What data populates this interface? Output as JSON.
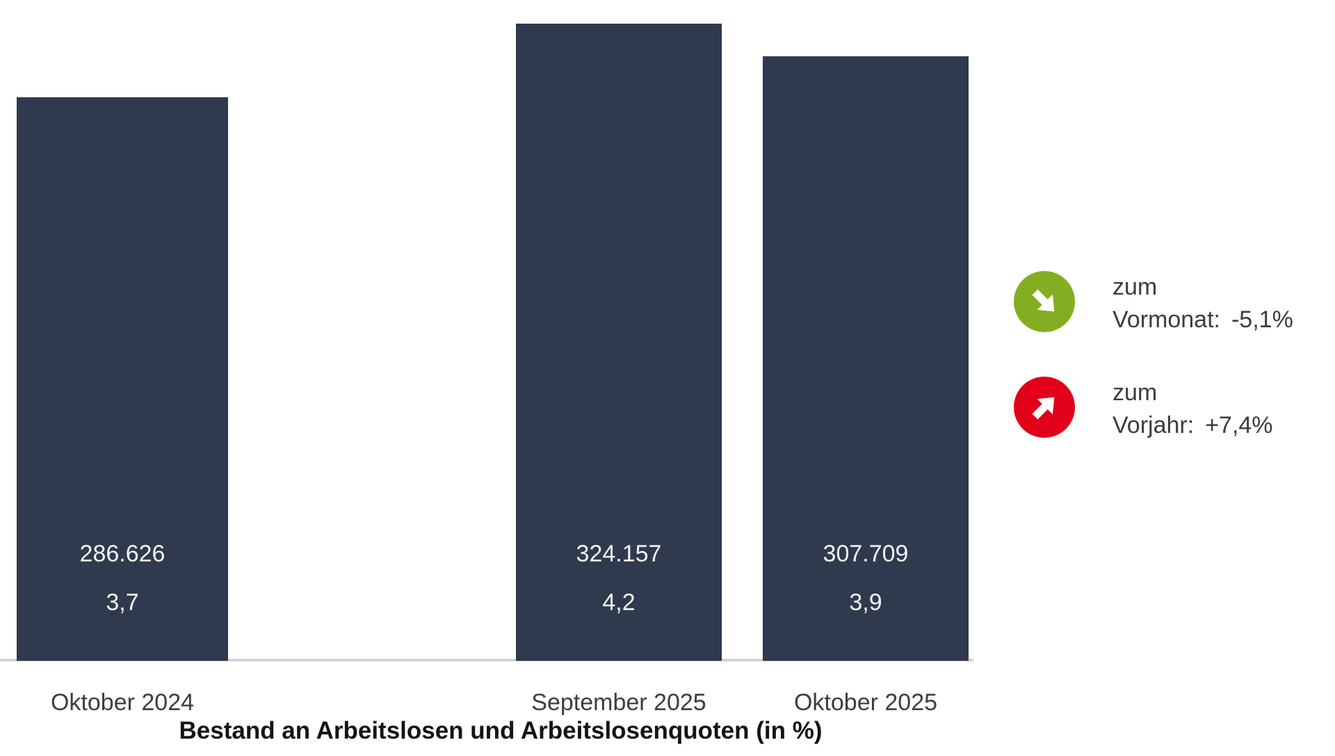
{
  "chart_data": {
    "type": "bar",
    "title": "Bestand an Arbeitslosen und Arbeitslosenquoten (in %)",
    "categories": [
      "Oktober 2024",
      "September 2025",
      "Oktober 2025"
    ],
    "values": [
      286626,
      324157,
      307709
    ],
    "value_labels": [
      "286.626",
      "324.157",
      "307.709"
    ],
    "quotas": [
      3.7,
      4.2,
      3.9
    ],
    "quota_labels": [
      "3,7",
      "4,2",
      "3,9"
    ],
    "ylim": [
      0,
      324157
    ],
    "grid": false,
    "legend_position": "right",
    "colors": {
      "bar": "#2F3A4E",
      "bar_label": "#F4F4F6",
      "axis_line": "#D4D4D4",
      "axis_label": "#3D3D3D",
      "legend_text": "#3C3C3C",
      "decrease_green": "#84AE21",
      "increase_red": "#E2001A"
    },
    "legend": [
      {
        "icon": "arrow-down-right-icon",
        "prefix": "zum",
        "label": "Vormonat:",
        "value": "-5,1%"
      },
      {
        "icon": "arrow-up-right-icon",
        "prefix": "zum",
        "label": "Vorjahr:",
        "value": "+7,4%"
      }
    ]
  }
}
